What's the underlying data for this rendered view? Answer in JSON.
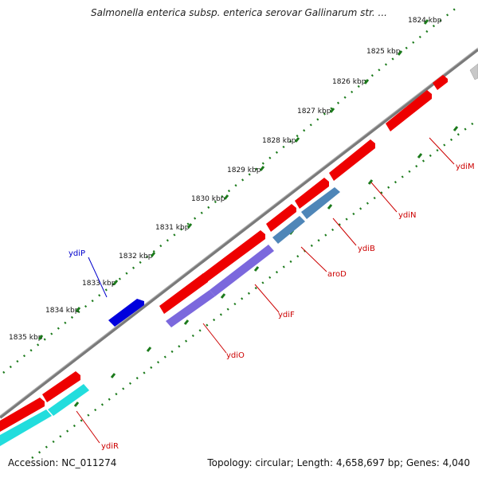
{
  "title": "Salmonella enterica subsp. enterica serovar Gallinarum str. ...",
  "footer": {
    "accession": "Accession: NC_011274",
    "summary": "Topology: circular; Length: 4,658,697 bp; Genes: 4,040"
  },
  "ticks": [
    "1824 kbp",
    "1825 kbp",
    "1826 kbp",
    "1827 kbp",
    "1828 kbp",
    "1829 kbp",
    "1830 kbp",
    "1831 kbp",
    "1832 kbp",
    "1833 kbp",
    "1834 kbp",
    "1835 kbp"
  ],
  "genes": {
    "ydiP": "ydiP",
    "ydiM": "ydiM",
    "ydiN": "ydiN",
    "ydiB": "ydiB",
    "aroD": "aroD",
    "ydiF": "ydiF",
    "ydiO": "ydiO",
    "ydiR": "ydiR"
  },
  "colors": {
    "red": "#ee0000",
    "blue": "#0000dd",
    "steel": "#4f86b8",
    "purple": "#7b68dd",
    "cyan": "#22dddd",
    "gray": "#cccccc",
    "backbone": "#808080",
    "tick": "#1b7a1b",
    "label_red": "#cc0000",
    "label_blue": "#0000cc"
  }
}
